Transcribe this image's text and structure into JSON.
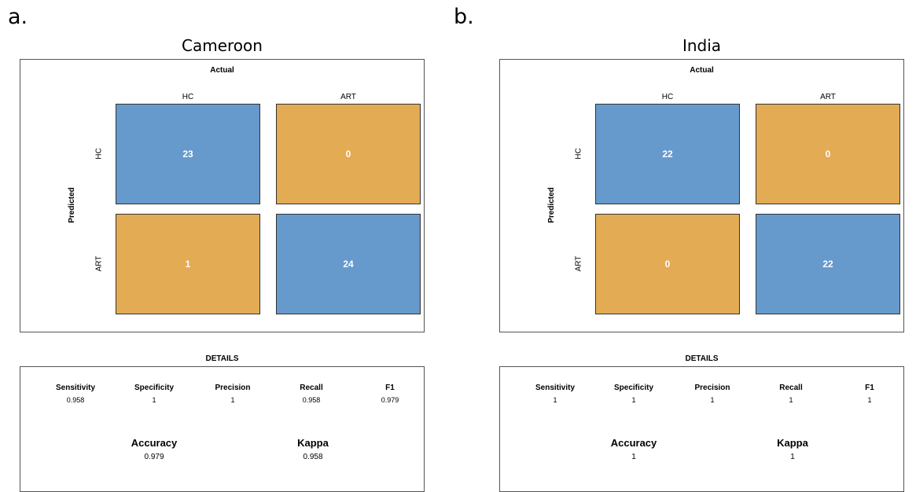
{
  "chart_data": [
    {
      "type": "heatmap",
      "panel_letter": "a.",
      "title": "Cameroon",
      "column_axis_label": "Actual",
      "row_axis_label": "Predicted",
      "classes": [
        "HC",
        "ART"
      ],
      "matrix": [
        [
          23,
          0
        ],
        [
          1,
          24
        ]
      ],
      "details_title": "DETAILS",
      "metrics": [
        {
          "name": "Sensitivity",
          "value": "0.958"
        },
        {
          "name": "Specificity",
          "value": "1"
        },
        {
          "name": "Precision",
          "value": "1"
        },
        {
          "name": "Recall",
          "value": "0.958"
        },
        {
          "name": "F1",
          "value": "0.979"
        }
      ],
      "summary": [
        {
          "name": "Accuracy",
          "value": "0.979"
        },
        {
          "name": "Kappa",
          "value": "0.958"
        }
      ]
    },
    {
      "type": "heatmap",
      "panel_letter": "b.",
      "title": "India",
      "column_axis_label": "Actual",
      "row_axis_label": "Predicted",
      "classes": [
        "HC",
        "ART"
      ],
      "matrix": [
        [
          22,
          0
        ],
        [
          0,
          22
        ]
      ],
      "details_title": "DETAILS",
      "metrics": [
        {
          "name": "Sensitivity",
          "value": "1"
        },
        {
          "name": "Specificity",
          "value": "1"
        },
        {
          "name": "Precision",
          "value": "1"
        },
        {
          "name": "Recall",
          "value": "1"
        },
        {
          "name": "F1",
          "value": "1"
        }
      ],
      "summary": [
        {
          "name": "Accuracy",
          "value": "1"
        },
        {
          "name": "Kappa",
          "value": "1"
        }
      ]
    }
  ],
  "colors": {
    "correct": "#6699cc",
    "incorrect": "#e3ab54",
    "value_text": "#ffffff"
  }
}
